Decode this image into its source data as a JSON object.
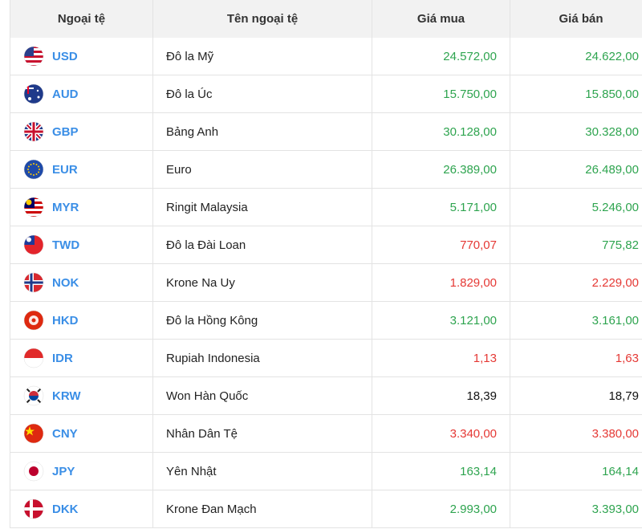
{
  "table": {
    "headers": [
      "Ngoại tệ",
      "Tên ngoại tệ",
      "Giá mua",
      "Giá bán"
    ],
    "rows": [
      {
        "code": "USD",
        "name": "Đô la Mỹ",
        "buy": "24.572,00",
        "sell": "24.622,00",
        "buy_color": "#2ea44f",
        "sell_color": "#2ea44f"
      },
      {
        "code": "AUD",
        "name": "Đô la Úc",
        "buy": "15.750,00",
        "sell": "15.850,00",
        "buy_color": "#2ea44f",
        "sell_color": "#2ea44f"
      },
      {
        "code": "GBP",
        "name": "Bảng Anh",
        "buy": "30.128,00",
        "sell": "30.328,00",
        "buy_color": "#2ea44f",
        "sell_color": "#2ea44f"
      },
      {
        "code": "EUR",
        "name": "Euro",
        "buy": "26.389,00",
        "sell": "26.489,00",
        "buy_color": "#2ea44f",
        "sell_color": "#2ea44f"
      },
      {
        "code": "MYR",
        "name": "Ringit Malaysia",
        "buy": "5.171,00",
        "sell": "5.246,00",
        "buy_color": "#2ea44f",
        "sell_color": "#2ea44f"
      },
      {
        "code": "TWD",
        "name": "Đô la Đài Loan",
        "buy": "770,07",
        "sell": "775,82",
        "buy_color": "#e53935",
        "sell_color": "#2ea44f"
      },
      {
        "code": "NOK",
        "name": "Krone Na Uy",
        "buy": "1.829,00",
        "sell": "2.229,00",
        "buy_color": "#e53935",
        "sell_color": "#e53935"
      },
      {
        "code": "HKD",
        "name": "Đô la Hồng Kông",
        "buy": "3.121,00",
        "sell": "3.161,00",
        "buy_color": "#2ea44f",
        "sell_color": "#2ea44f"
      },
      {
        "code": "IDR",
        "name": "Rupiah Indonesia",
        "buy": "1,13",
        "sell": "1,63",
        "buy_color": "#e53935",
        "sell_color": "#e53935"
      },
      {
        "code": "KRW",
        "name": "Won Hàn Quốc",
        "buy": "18,39",
        "sell": "18,79",
        "buy_color": "#111111",
        "sell_color": "#111111"
      },
      {
        "code": "CNY",
        "name": "Nhân Dân Tệ",
        "buy": "3.340,00",
        "sell": "3.380,00",
        "buy_color": "#e53935",
        "sell_color": "#e53935"
      },
      {
        "code": "JPY",
        "name": "Yên Nhật",
        "buy": "163,14",
        "sell": "164,14",
        "buy_color": "#2ea44f",
        "sell_color": "#2ea44f"
      },
      {
        "code": "DKK",
        "name": "Krone Đan Mạch",
        "buy": "2.993,00",
        "sell": "3.393,00",
        "buy_color": "#2ea44f",
        "sell_color": "#2ea44f"
      }
    ]
  }
}
